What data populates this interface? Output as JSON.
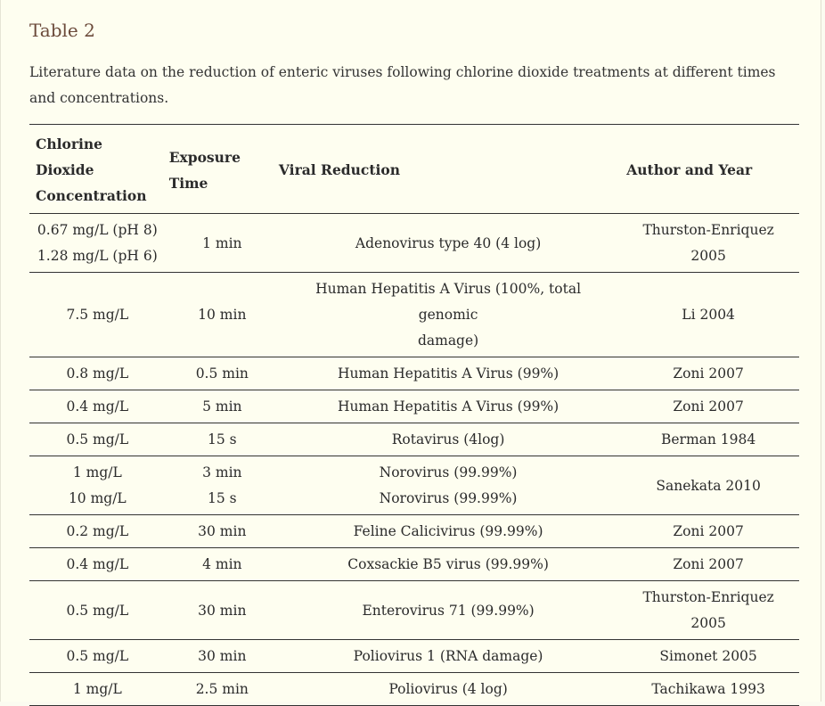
{
  "caption": {
    "title": "Table 2",
    "text": "Literature data on the reduction of enteric viruses following chlorine dioxide treatments at different times and concentrations."
  },
  "table": {
    "headers": {
      "concentration": [
        "Chlorine",
        "Dioxide",
        "Concentration"
      ],
      "exposure": [
        "Exposure",
        "Time"
      ],
      "reduction": "Viral Reduction",
      "author": "Author and Year"
    },
    "rows": [
      {
        "conc": [
          "0.67 mg/L (pH 8)",
          "1.28 mg/L (pH 6)"
        ],
        "time": [
          "1 min"
        ],
        "reduction": [
          "Adenovirus type 40 (4 log)"
        ],
        "author": [
          "Thurston-Enriquez",
          "2005"
        ]
      },
      {
        "conc": [
          "7.5 mg/L"
        ],
        "time": [
          "10 min"
        ],
        "reduction": [
          "Human Hepatitis A Virus (100%, total genomic",
          "damage)"
        ],
        "author": [
          "Li 2004"
        ]
      },
      {
        "conc": [
          "0.8 mg/L"
        ],
        "time": [
          "0.5 min"
        ],
        "reduction": [
          "Human Hepatitis A Virus (99%)"
        ],
        "author": [
          "Zoni 2007"
        ]
      },
      {
        "conc": [
          "0.4 mg/L"
        ],
        "time": [
          "5 min"
        ],
        "reduction": [
          "Human Hepatitis A Virus (99%)"
        ],
        "author": [
          "Zoni 2007"
        ]
      },
      {
        "conc": [
          "0.5 mg/L"
        ],
        "time": [
          "15 s"
        ],
        "reduction": [
          "Rotavirus (4log)"
        ],
        "author": [
          "Berman 1984"
        ]
      },
      {
        "conc": [
          "1 mg/L",
          "10 mg/L"
        ],
        "time": [
          "3 min",
          "15 s"
        ],
        "reduction": [
          "Norovirus (99.99%)",
          "Norovirus (99.99%)"
        ],
        "author": [
          "Sanekata 2010"
        ]
      },
      {
        "conc": [
          "0.2 mg/L"
        ],
        "time": [
          "30 min"
        ],
        "reduction": [
          "Feline Calicivirus (99.99%)"
        ],
        "author": [
          "Zoni 2007"
        ]
      },
      {
        "conc": [
          "0.4 mg/L"
        ],
        "time": [
          "4 min"
        ],
        "reduction": [
          "Coxsackie B5 virus (99.99%)"
        ],
        "author": [
          "Zoni 2007"
        ]
      },
      {
        "conc": [
          "0.5 mg/L"
        ],
        "time": [
          "30 min"
        ],
        "reduction": [
          "Enterovirus 71 (99.99%)"
        ],
        "author": [
          "Thurston-Enriquez",
          "2005"
        ]
      },
      {
        "conc": [
          "0.5 mg/L"
        ],
        "time": [
          "30 min"
        ],
        "reduction": [
          "Poliovirus 1 (RNA damage)"
        ],
        "author": [
          "Simonet 2005"
        ]
      },
      {
        "conc": [
          "1 mg/L"
        ],
        "time": [
          "2.5 min"
        ],
        "reduction": [
          "Poliovirus (4 log)"
        ],
        "author": [
          "Tachikawa 1993"
        ]
      }
    ]
  },
  "colors": {
    "title": "#6b4a3a",
    "background": "#fefef0",
    "rule": "#333333"
  }
}
